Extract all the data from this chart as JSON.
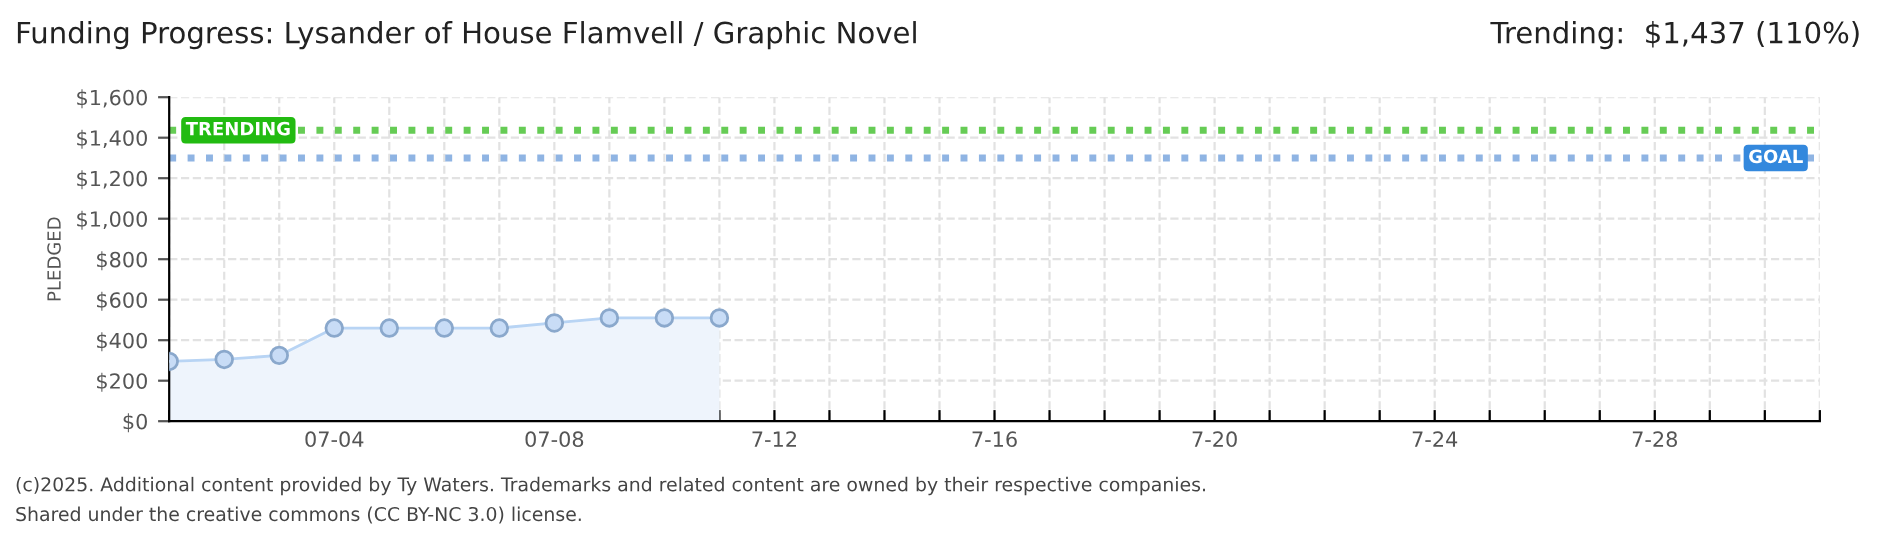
{
  "chart_data": {
    "type": "area",
    "title": "Funding Progress: Lysander of House Flamvell / Graphic Novel",
    "subtitle": "Trending:  $1,437 (110%)",
    "ylabel": "PLEDGED",
    "x": [
      "2025-07-01",
      "2025-07-02",
      "2025-07-03",
      "2025-07-04",
      "2025-07-05",
      "2025-07-06",
      "2025-07-07",
      "2025-07-08",
      "2025-07-09",
      "2025-07-10",
      "2025-07-11"
    ],
    "series": [
      {
        "color": "#b8d4f4",
        "values": [
          295,
          305,
          325,
          460,
          460,
          460,
          460,
          485,
          510,
          510,
          510
        ]
      }
    ],
    "marker": "circle",
    "grid": true,
    "xlim": [
      "2025-07-01",
      "2025-07-31"
    ],
    "xticks": [
      {
        "value": "2025-07-01",
        "label": null
      },
      {
        "value": "2025-07-02",
        "label": null
      },
      {
        "value": "2025-07-03",
        "label": null
      },
      {
        "value": "2025-07-04",
        "label": "07-04"
      },
      {
        "value": "2025-07-05",
        "label": null
      },
      {
        "value": "2025-07-06",
        "label": null
      },
      {
        "value": "2025-07-07",
        "label": null
      },
      {
        "value": "2025-07-08",
        "label": "07-08"
      },
      {
        "value": "2025-07-09",
        "label": null
      },
      {
        "value": "2025-07-10",
        "label": null
      },
      {
        "value": "2025-07-11",
        "label": null
      },
      {
        "value": "2025-07-12",
        "label": "7-12"
      },
      {
        "value": "2025-07-13",
        "label": null
      },
      {
        "value": "2025-07-14",
        "label": null
      },
      {
        "value": "2025-07-15",
        "label": null
      },
      {
        "value": "2025-07-16",
        "label": "7-16"
      },
      {
        "value": "2025-07-17",
        "label": null
      },
      {
        "value": "2025-07-18",
        "label": null
      },
      {
        "value": "2025-07-19",
        "label": null
      },
      {
        "value": "2025-07-20",
        "label": "7-20"
      },
      {
        "value": "2025-07-21",
        "label": null
      },
      {
        "value": "2025-07-22",
        "label": null
      },
      {
        "value": "2025-07-23",
        "label": null
      },
      {
        "value": "2025-07-24",
        "label": "7-24"
      },
      {
        "value": "2025-07-25",
        "label": null
      },
      {
        "value": "2025-07-26",
        "label": null
      },
      {
        "value": "2025-07-27",
        "label": null
      },
      {
        "value": "2025-07-28",
        "label": "7-28"
      },
      {
        "value": "2025-07-29",
        "label": null
      },
      {
        "value": "2025-07-30",
        "label": null
      },
      {
        "value": "2025-07-31",
        "label": null
      }
    ],
    "ylim": [
      0,
      1600
    ],
    "yticks": [
      {
        "value": 0,
        "label": "$0"
      },
      {
        "value": 200,
        "label": "$200"
      },
      {
        "value": 400,
        "label": "$400"
      },
      {
        "value": 600,
        "label": "$600"
      },
      {
        "value": 800,
        "label": "$800"
      },
      {
        "value": 1000,
        "label": "$1,000"
      },
      {
        "value": 1200,
        "label": "$1,200"
      },
      {
        "value": 1400,
        "label": "$1,400"
      },
      {
        "value": 1600,
        "label": "$1,600"
      }
    ],
    "ref_lines": [
      {
        "axis": "y",
        "value": 1437,
        "label": "TRENDING",
        "color": "#66cc55",
        "line_style": "dotted"
      },
      {
        "axis": "y",
        "value": 1300,
        "label": "GOAL",
        "color": "#8fb4e3",
        "line_style": "dotted"
      }
    ],
    "annotations": [
      "(c)2025. Additional content provided by Ty Waters. Trademarks and related content are owned by their respective companies.",
      "Shared under the creative commons (CC BY-NC 3.0) license."
    ]
  }
}
